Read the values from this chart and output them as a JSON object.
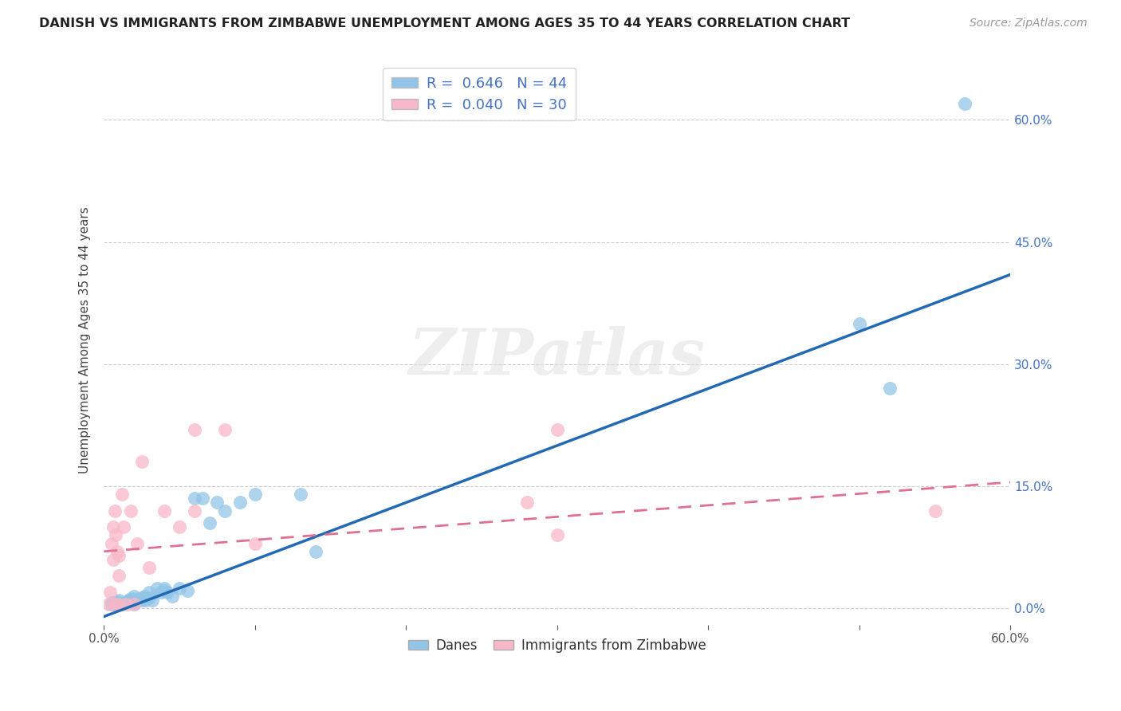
{
  "title": "DANISH VS IMMIGRANTS FROM ZIMBABWE UNEMPLOYMENT AMONG AGES 35 TO 44 YEARS CORRELATION CHART",
  "source": "Source: ZipAtlas.com",
  "ylabel": "Unemployment Among Ages 35 to 44 years",
  "xlim": [
    0.0,
    0.6
  ],
  "ylim": [
    -0.02,
    0.68
  ],
  "xticks": [
    0.0,
    0.1,
    0.2,
    0.3,
    0.4,
    0.5,
    0.6
  ],
  "xtick_labels_bottom": [
    "0.0%",
    "",
    "",
    "",
    "",
    "",
    "60.0%"
  ],
  "yticks": [
    0.0,
    0.15,
    0.3,
    0.45,
    0.6
  ],
  "ytick_labels_right": [
    "0.0%",
    "15.0%",
    "30.0%",
    "45.0%",
    "60.0%"
  ],
  "danes_R": 0.646,
  "danes_N": 44,
  "zimb_R": 0.04,
  "zimb_N": 30,
  "danes_color": "#92c5e8",
  "zimb_color": "#f9b8c8",
  "danes_line_color": "#2469b3",
  "zimb_line_color": "#e07090",
  "watermark": "ZIPatlas",
  "danes_scatter_x": [
    0.005,
    0.005,
    0.007,
    0.008,
    0.01,
    0.01,
    0.01,
    0.012,
    0.013,
    0.015,
    0.016,
    0.018,
    0.02,
    0.02,
    0.02,
    0.022,
    0.023,
    0.025,
    0.025,
    0.027,
    0.028,
    0.03,
    0.03,
    0.032,
    0.035,
    0.038,
    0.04,
    0.04,
    0.042,
    0.045,
    0.05,
    0.055,
    0.06,
    0.065,
    0.07,
    0.075,
    0.08,
    0.09,
    0.1,
    0.13,
    0.14,
    0.5,
    0.52,
    0.57
  ],
  "danes_scatter_y": [
    0.005,
    0.007,
    0.005,
    0.008,
    0.005,
    0.007,
    0.01,
    0.005,
    0.006,
    0.008,
    0.01,
    0.012,
    0.005,
    0.008,
    0.015,
    0.01,
    0.012,
    0.01,
    0.013,
    0.015,
    0.01,
    0.013,
    0.02,
    0.01,
    0.025,
    0.02,
    0.022,
    0.025,
    0.02,
    0.015,
    0.025,
    0.022,
    0.135,
    0.135,
    0.105,
    0.13,
    0.12,
    0.13,
    0.14,
    0.14,
    0.07,
    0.35,
    0.27,
    0.62
  ],
  "zimb_scatter_x": [
    0.003,
    0.004,
    0.005,
    0.006,
    0.006,
    0.007,
    0.007,
    0.008,
    0.009,
    0.01,
    0.01,
    0.01,
    0.012,
    0.013,
    0.015,
    0.018,
    0.02,
    0.022,
    0.025,
    0.03,
    0.04,
    0.05,
    0.06,
    0.06,
    0.08,
    0.1,
    0.28,
    0.3,
    0.3,
    0.55
  ],
  "zimb_scatter_y": [
    0.005,
    0.02,
    0.08,
    0.06,
    0.1,
    0.005,
    0.12,
    0.09,
    0.07,
    0.005,
    0.04,
    0.065,
    0.14,
    0.1,
    0.005,
    0.12,
    0.005,
    0.08,
    0.18,
    0.05,
    0.12,
    0.1,
    0.12,
    0.22,
    0.22,
    0.08,
    0.13,
    0.09,
    0.22,
    0.12
  ],
  "danes_trend_x": [
    0.0,
    0.6
  ],
  "danes_trend_y": [
    -0.01,
    0.41
  ],
  "zimb_trend_x": [
    0.0,
    0.6
  ],
  "zimb_trend_y": [
    0.07,
    0.155
  ],
  "background_color": "#ffffff",
  "grid_color": "#cccccc",
  "tick_color": "#555555",
  "right_axis_color": "#4472c4",
  "legend_label1": "R =  0.646   N = 44",
  "legend_label2": "R =  0.040   N = 30",
  "bottom_legend_label1": "Danes",
  "bottom_legend_label2": "Immigrants from Zimbabwe"
}
